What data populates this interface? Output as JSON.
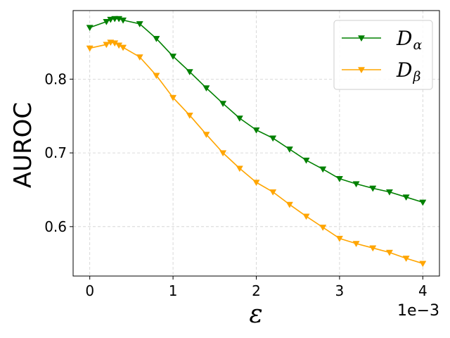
{
  "chart_data": {
    "type": "line",
    "xlabel": "ε",
    "ylabel": "AUROC",
    "x_offset_label": "1e−3",
    "xlim": [
      -0.2,
      4.2
    ],
    "ylim": [
      0.533,
      0.893
    ],
    "xticks": [
      0,
      1,
      2,
      3,
      4
    ],
    "xtick_labels": [
      "0",
      "1",
      "2",
      "3",
      "4"
    ],
    "yticks": [
      0.6,
      0.7,
      0.8
    ],
    "ytick_labels": [
      "0.6",
      "0.7",
      "0.8"
    ],
    "grid": true,
    "legend_position": "top-right",
    "series": [
      {
        "name": "D_α",
        "legend_base": "D",
        "legend_sub": "α",
        "color": "#008000",
        "marker": "triangle-down",
        "x": [
          0,
          0.2,
          0.25,
          0.3,
          0.35,
          0.4,
          0.6,
          0.8,
          1.0,
          1.2,
          1.4,
          1.6,
          1.8,
          2.0,
          2.2,
          2.4,
          2.6,
          2.8,
          3.0,
          3.2,
          3.4,
          3.6,
          3.8,
          4.0
        ],
        "y": [
          0.87,
          0.878,
          0.881,
          0.882,
          0.882,
          0.88,
          0.875,
          0.855,
          0.831,
          0.81,
          0.788,
          0.767,
          0.747,
          0.731,
          0.72,
          0.705,
          0.69,
          0.678,
          0.665,
          0.658,
          0.652,
          0.647,
          0.64,
          0.633
        ]
      },
      {
        "name": "D_β",
        "legend_base": "D",
        "legend_sub": "β",
        "color": "#FFA500",
        "marker": "triangle-down",
        "x": [
          0,
          0.2,
          0.25,
          0.3,
          0.35,
          0.4,
          0.6,
          0.8,
          1.0,
          1.2,
          1.4,
          1.6,
          1.8,
          2.0,
          2.2,
          2.4,
          2.6,
          2.8,
          3.0,
          3.2,
          3.4,
          3.6,
          3.8,
          4.0
        ],
        "y": [
          0.842,
          0.847,
          0.85,
          0.849,
          0.846,
          0.843,
          0.83,
          0.805,
          0.775,
          0.751,
          0.725,
          0.7,
          0.679,
          0.66,
          0.647,
          0.63,
          0.614,
          0.599,
          0.584,
          0.577,
          0.571,
          0.565,
          0.557,
          0.55
        ]
      }
    ]
  }
}
